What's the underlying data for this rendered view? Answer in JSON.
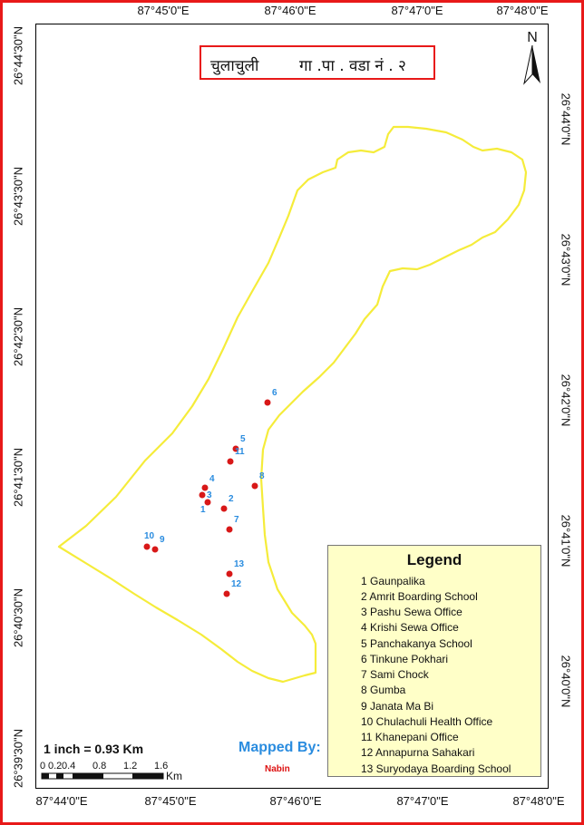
{
  "title": {
    "part1": "चुलाचुली",
    "part2": "गा .पा . वडा  नं . २"
  },
  "north_label": "N",
  "top_labels": [
    "87°45'0\"E",
    "87°46'0\"E",
    "87°47'0\"E",
    "87°48'0\"E"
  ],
  "bottom_labels": [
    "87°44'0\"E",
    "87°45'0\"E",
    "87°46'0\"E",
    "87°47'0\"E",
    "87°48'0\"E"
  ],
  "left_labels": [
    "26°44'30\"N",
    "26°43'30\"N",
    "26°42'30\"N",
    "26°41'30\"N",
    "26°40'30\"N",
    "26°39'30\"N"
  ],
  "right_labels": [
    "26°44'0\"N",
    "26°43'0\"N",
    "26°42'0\"N",
    "26°41'0\"N",
    "26°40'0\"N"
  ],
  "legend": {
    "title": "Legend",
    "items": [
      "1  Gaunpalika",
      "2  Amrit Boarding School",
      "3  Pashu Sewa Office",
      "4  Krishi Sewa Office",
      "5  Panchakanya School",
      "6  Tinkune Pokhari",
      "7  Sami Chock",
      "8  Gumba",
      "9  Janata Ma Bi",
      "10  Chulachuli Health Office",
      "11  Khanepani Office",
      "12  Annapurna Sahakari",
      "13  Suryodaya Boarding School"
    ]
  },
  "points": [
    {
      "id": "1"
    },
    {
      "id": "2"
    },
    {
      "id": "3"
    },
    {
      "id": "4"
    },
    {
      "id": "5"
    },
    {
      "id": "6"
    },
    {
      "id": "7"
    },
    {
      "id": "8"
    },
    {
      "id": "9"
    },
    {
      "id": "10"
    },
    {
      "id": "11"
    },
    {
      "id": "12"
    },
    {
      "id": "13"
    }
  ],
  "scale": {
    "text": "1 inch = 0.93 Km",
    "ticks": [
      "0",
      "0.2",
      "0.4",
      "0.8",
      "1.2",
      "1.6"
    ],
    "unit": "Km"
  },
  "mapped_by": "Mapped By:",
  "author": "Nabin",
  "colors": {
    "frame": "#e81919",
    "boundary": "#f5ec3a",
    "point": "#d81818",
    "label": "#2a8cdf",
    "legend_bg": "#ffffc8"
  }
}
